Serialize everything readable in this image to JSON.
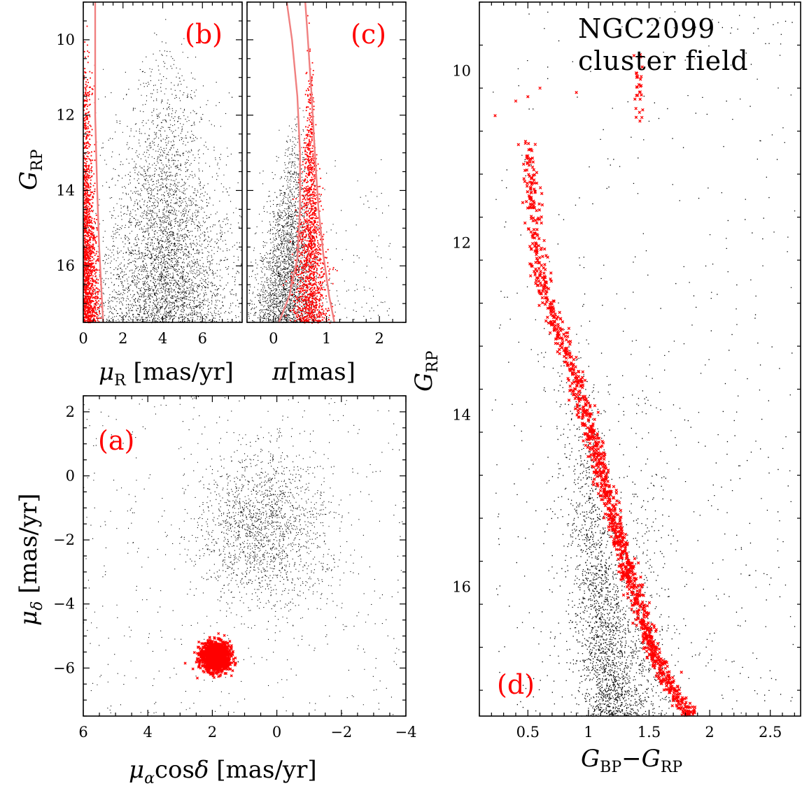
{
  "colors": {
    "field_stars": "#000000",
    "members": "#ff0000",
    "selection_curve": "#f08080",
    "panel_tags": "#ff0000"
  },
  "title_lines": [
    "NGC2099",
    "cluster field"
  ],
  "chart_data": [
    {
      "id": "b",
      "type": "scatter",
      "label": "(b)",
      "xlabel": "μR [mas/yr]",
      "ylabel": "GRP",
      "xlim": [
        0,
        8
      ],
      "ylim": [
        17.5,
        9
      ],
      "xticks": [
        0,
        2,
        4,
        6
      ],
      "yticks": [
        10,
        12,
        14,
        16
      ],
      "series": [
        {
          "name": "",
          "role": "field",
          "approx": true
        },
        {
          "name": "",
          "role": "members",
          "approx": true
        }
      ],
      "selection_boundary": {
        "x": [
          0.6,
          0.6,
          0.6,
          0.7,
          0.8,
          0.9,
          1.0
        ],
        "y": [
          9,
          10,
          12,
          14,
          15.5,
          16.5,
          17.5
        ]
      }
    },
    {
      "id": "c",
      "type": "scatter",
      "label": "(c)",
      "xlabel": "π[mas]",
      "ylabel": "",
      "xlim": [
        -0.5,
        2.5
      ],
      "ylim": [
        17.5,
        9
      ],
      "xticks": [
        0,
        1,
        2
      ],
      "yticks": [
        10,
        12,
        14,
        16
      ],
      "series": [
        {
          "name": "",
          "role": "field",
          "approx": true
        },
        {
          "name": "",
          "role": "members",
          "approx": true
        }
      ],
      "selection_boundary_left": {
        "x": [
          0.25,
          0.35,
          0.45,
          0.5,
          0.5,
          0.45,
          0.3,
          0.1
        ],
        "y": [
          9,
          10,
          11.5,
          13,
          14.5,
          15.8,
          16.8,
          17.5
        ]
      },
      "selection_boundary_right": {
        "x": [
          0.6,
          0.65,
          0.72,
          0.78,
          0.85,
          0.95,
          1.05,
          1.15
        ],
        "y": [
          9,
          10,
          11.5,
          13,
          14.5,
          15.8,
          16.8,
          17.5
        ]
      }
    },
    {
      "id": "a",
      "type": "scatter",
      "label": "(a)",
      "xlabel": "μαcosδ [mas/yr]",
      "ylabel": "μδ [mas/yr]",
      "xlim": [
        6,
        -4
      ],
      "ylim": [
        -7.5,
        2.5
      ],
      "xticks": [
        6,
        4,
        2,
        0,
        -2,
        -4
      ],
      "yticks": [
        2,
        0,
        -2,
        -4,
        -6
      ],
      "series": [
        {
          "name": "",
          "role": "field",
          "center": [
            0.4,
            -1.6
          ],
          "approx": true
        },
        {
          "name": "",
          "role": "members",
          "center": [
            1.9,
            -5.65
          ],
          "approx": true
        }
      ]
    },
    {
      "id": "d",
      "type": "scatter",
      "label": "(d)",
      "xlabel": "GBP−GRP",
      "ylabel": "GRP",
      "xlim": [
        0.1,
        2.75
      ],
      "ylim": [
        17.5,
        9.2
      ],
      "xticks": [
        0.5,
        1,
        1.5,
        2,
        2.5
      ],
      "yticks": [
        10,
        12,
        14,
        16
      ],
      "series": [
        {
          "name": "",
          "role": "field",
          "approx": true
        },
        {
          "name": "",
          "role": "members",
          "approx": true
        }
      ],
      "member_sequence": {
        "x": [
          0.5,
          0.52,
          0.6,
          0.75,
          0.9,
          1.05,
          1.2,
          1.35,
          1.5,
          1.65,
          1.85
        ],
        "y": [
          10.8,
          11.5,
          12.4,
          13.0,
          13.6,
          14.4,
          15.2,
          15.9,
          16.6,
          17.1,
          17.5
        ]
      },
      "red_clump": {
        "x": 1.42,
        "y_range": [
          9.8,
          10.6
        ]
      }
    }
  ]
}
